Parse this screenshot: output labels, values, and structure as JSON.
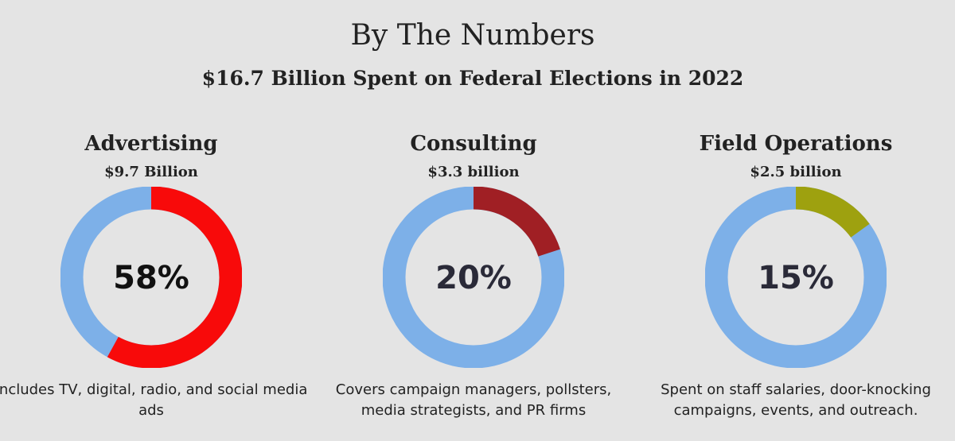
{
  "header": {
    "title": "By The Numbers",
    "subtitle": "$16.7 Billion Spent on Federal Elections in 2022"
  },
  "colors": {
    "track": "#7db0e8",
    "advertising": "#f80a0a",
    "consulting": "#a01f24",
    "field": "#9ea10f",
    "label_dark": "#2a2a38"
  },
  "chart_data": [
    {
      "type": "pie",
      "title": "Advertising",
      "amount": "$9.7 Billion",
      "value": 58,
      "label": "58%",
      "description": "Includes TV, digital, radio, and social media ads",
      "color": "#f80a0a"
    },
    {
      "type": "pie",
      "title": "Consulting",
      "amount": "$3.3 billion",
      "value": 20,
      "label": "20%",
      "description": "Covers campaign managers, pollsters, media strategists, and PR firms",
      "color": "#a01f24"
    },
    {
      "type": "pie",
      "title": "Field Operations",
      "amount": "$2.5 billion",
      "value": 15,
      "label": "15%",
      "description": "Spent on staff salaries, door-knocking campaigns, events, and outreach.",
      "color": "#9ea10f"
    }
  ]
}
